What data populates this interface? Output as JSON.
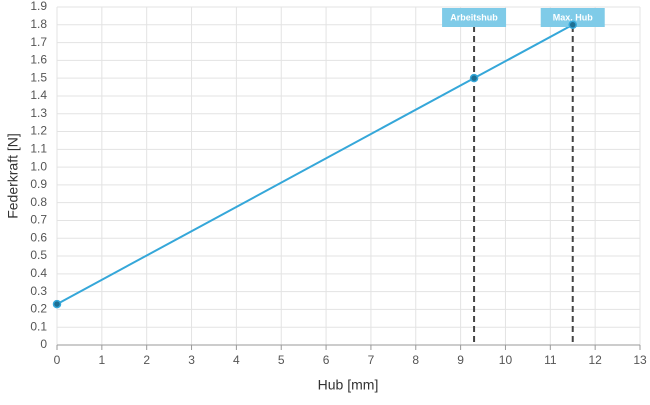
{
  "chart_data": {
    "type": "line",
    "x_label": "Hub [mm]",
    "y_label": "Federkraft [N]",
    "x": [
      0,
      9.3,
      11.5
    ],
    "values": [
      0.23,
      1.5,
      1.8
    ],
    "color": "#35a7d9",
    "xlim": [
      0,
      13
    ],
    "xticks": [
      0,
      1,
      2,
      3,
      4,
      5,
      6,
      7,
      8,
      9,
      10,
      11,
      12,
      13
    ],
    "ylim": [
      0,
      1.9
    ],
    "yticks": [
      0,
      0.1,
      0.2,
      0.3,
      0.4,
      0.5,
      0.6,
      0.7,
      0.8,
      0.9,
      {
        "value": 1,
        "label": "1.0"
      },
      1.1,
      1.2,
      1.3,
      1.4,
      1.5,
      1.6,
      1.7,
      1.8,
      1.9
    ],
    "grid": true,
    "annotations": [
      {
        "x": 9.3,
        "label": "Arbeitshub"
      },
      {
        "x": 11.5,
        "label": "Max. Hub"
      }
    ],
    "annotation_color": "#7fcbe8"
  }
}
